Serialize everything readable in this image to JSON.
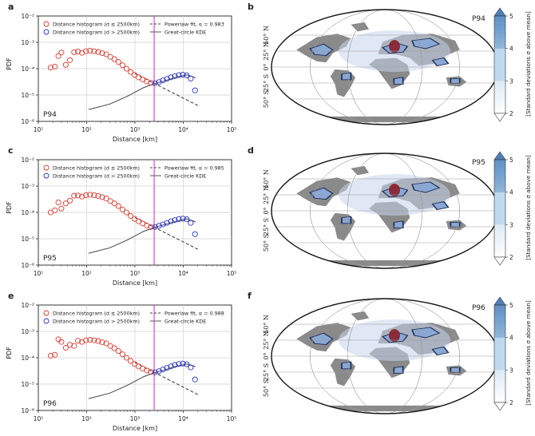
{
  "figure": {
    "rows": [
      {
        "left_letter": "a",
        "right_letter": "b",
        "panel_tag": "P94",
        "legend": {
          "small": "Distance histogram (d ≤ 2500km)",
          "large": "Distance histogram (d > 2500km)",
          "fit": "Powerlaw fit, α = 0.983",
          "kde": "Great-circle KDE"
        }
      },
      {
        "left_letter": "c",
        "right_letter": "d",
        "panel_tag": "P95",
        "legend": {
          "small": "Distance histogram (d ≤ 2500km)",
          "large": "Distance histogram (d > 2500km)",
          "fit": "Powerlaw fit, α = 0.985",
          "kde": "Great-circle KDE"
        }
      },
      {
        "left_letter": "e",
        "right_letter": "f",
        "panel_tag": "P96",
        "legend": {
          "small": "Distance histogram (d ≤ 2500km)",
          "large": "Distance histogram (d > 2500km)",
          "fit": "Powerlaw fit, α = 0.988",
          "kde": "Great-circle KDE"
        }
      }
    ],
    "axis_ylabel": "PDF",
    "axis_xlabel": "Distance [km]",
    "x_tick_labels": [
      "10¹",
      "10²",
      "10³",
      "10⁴",
      "10⁵"
    ],
    "y_tick_labels": [
      "10⁻⁶",
      "10⁻⁵",
      "10⁻⁴",
      "10⁻³",
      "10⁻²"
    ],
    "map_lat_labels": [
      "50° N",
      "25° N",
      "0°",
      "25° S",
      "50° S"
    ],
    "colorbar_label": "[Standard deviations σ above mean]",
    "colorbar_ticks": [
      "2",
      "3",
      "4",
      "5"
    ],
    "colors": {
      "small_marker": "#e03a2f",
      "large_marker": "#2b34c8",
      "cutoff_line": "#d23ad6",
      "fit_line": "#444444",
      "kde_line": "#555555",
      "land": "#8a8a8a",
      "hotspot": "#1d2f5a",
      "colorbar": [
        "#ffffff",
        "#bfd9ee",
        "#8fb6da",
        "#5f8fc4"
      ]
    }
  },
  "chart_data": [
    {
      "type": "scatter",
      "title": "P94",
      "xlabel": "Distance [km]",
      "ylabel": "PDF",
      "xscale": "log",
      "yscale": "log",
      "xlim": [
        10,
        100000
      ],
      "ylim": [
        1e-06,
        0.01
      ],
      "grid": true,
      "legend_position": "top",
      "cutoff_km": 2500,
      "series": [
        {
          "name": "Distance histogram (d ≤ 2500km)",
          "x": [
            18,
            22,
            26,
            30,
            37,
            45,
            55,
            66,
            80,
            97,
            118,
            143,
            173,
            210,
            255,
            309,
            375,
            455,
            552,
            669,
            812,
            985,
            1195,
            1450,
            1758,
            2133
          ],
          "y": [
            0.00011,
            0.00012,
            0.0003,
            0.00041,
            0.00014,
            0.00021,
            0.00042,
            0.00045,
            0.0004,
            0.00046,
            0.00048,
            0.00046,
            0.00043,
            0.00039,
            0.00035,
            0.00028,
            0.00023,
            0.00018,
            0.000135,
            0.0001,
            7.5e-05,
            5.8e-05,
            4.7e-05,
            3.9e-05,
            3.3e-05,
            2.9e-05
          ]
        },
        {
          "name": "Distance histogram (d > 2500km)",
          "x": [
            2600,
            3150,
            3800,
            4600,
            5550,
            6700,
            8100,
            9800,
            11800,
            14300,
            17500
          ],
          "y": [
            2.8e-05,
            3.1e-05,
            3.6e-05,
            4.1e-05,
            4.7e-05,
            5.2e-05,
            5.7e-05,
            5.9e-05,
            5.6e-05,
            4.2e-05,
            1.5e-05
          ]
        },
        {
          "name": "Powerlaw fit, α = 0.983",
          "x": [
            1000,
            20000
          ],
          "y": [
            6.5e-05,
            4e-06
          ]
        },
        {
          "name": "Great-circle KDE",
          "x": [
            110,
            300,
            700,
            1500,
            2500,
            4000,
            7000,
            12000,
            18000
          ],
          "y": [
            2.8e-06,
            4.5e-06,
            9e-06,
            1.9e-05,
            2.7e-05,
            3.4e-05,
            4.7e-05,
            5.8e-05,
            4.5e-05
          ]
        }
      ]
    },
    {
      "type": "scatter",
      "title": "P95",
      "xlabel": "Distance [km]",
      "ylabel": "PDF",
      "xscale": "log",
      "yscale": "log",
      "xlim": [
        10,
        100000
      ],
      "ylim": [
        1e-06,
        0.01
      ],
      "grid": true,
      "legend_position": "top",
      "cutoff_km": 2500,
      "series": [
        {
          "name": "Distance histogram (d ≤ 2500km)",
          "x": [
            18,
            22,
            26,
            30,
            37,
            45,
            55,
            66,
            80,
            97,
            118,
            143,
            173,
            210,
            255,
            309,
            375,
            455,
            552,
            669,
            812,
            985,
            1195,
            1450,
            1758,
            2133
          ],
          "y": [
            0.0001,
            0.00012,
            0.00024,
            0.00014,
            0.00022,
            0.00028,
            0.00043,
            0.00044,
            0.0004,
            0.00045,
            0.00047,
            0.00045,
            0.00042,
            0.00038,
            0.00034,
            0.00027,
            0.00022,
            0.000175,
            0.00013,
            0.0001,
            7.4e-05,
            5.7e-05,
            4.6e-05,
            3.8e-05,
            3.2e-05,
            2.8e-05
          ]
        },
        {
          "name": "Distance histogram (d > 2500km)",
          "x": [
            2600,
            3150,
            3800,
            4600,
            5550,
            6700,
            8100,
            9800,
            11800,
            14300,
            17500
          ],
          "y": [
            2.8e-05,
            3.1e-05,
            3.5e-05,
            4e-05,
            4.6e-05,
            5.1e-05,
            5.6e-05,
            5.8e-05,
            5.5e-05,
            4e-05,
            1.5e-05
          ]
        },
        {
          "name": "Powerlaw fit, α = 0.985",
          "x": [
            1000,
            20000
          ],
          "y": [
            6.4e-05,
            4e-06
          ]
        },
        {
          "name": "Great-circle KDE",
          "x": [
            110,
            300,
            700,
            1500,
            2500,
            4000,
            7000,
            12000,
            18000
          ],
          "y": [
            2.8e-06,
            4.5e-06,
            9e-06,
            1.9e-05,
            2.7e-05,
            3.4e-05,
            4.6e-05,
            5.7e-05,
            4.4e-05
          ]
        }
      ]
    },
    {
      "type": "scatter",
      "title": "P96",
      "xlabel": "Distance [km]",
      "ylabel": "PDF",
      "xscale": "log",
      "yscale": "log",
      "xlim": [
        10,
        100000
      ],
      "ylim": [
        1e-06,
        0.01
      ],
      "grid": true,
      "legend_position": "top",
      "cutoff_km": 2500,
      "series": [
        {
          "name": "Distance histogram (d ≤ 2500km)",
          "x": [
            18,
            22,
            26,
            30,
            37,
            45,
            55,
            66,
            80,
            97,
            118,
            143,
            173,
            210,
            255,
            309,
            375,
            455,
            552,
            669,
            812,
            985,
            1195,
            1450,
            1758,
            2133
          ],
          "y": [
            0.00012,
            0.00013,
            0.0005,
            0.0004,
            0.00024,
            0.00031,
            0.00028,
            0.00044,
            0.0004,
            0.00046,
            0.00048,
            0.00046,
            0.00043,
            0.00039,
            0.00035,
            0.00028,
            0.00023,
            0.00018,
            0.000135,
            0.0001,
            7.6e-05,
            5.8e-05,
            4.7e-05,
            3.9e-05,
            3.3e-05,
            2.9e-05
          ]
        },
        {
          "name": "Distance histogram (d > 2500km)",
          "x": [
            2600,
            3150,
            3800,
            4600,
            5550,
            6700,
            8100,
            9800,
            11800,
            14300,
            17500
          ],
          "y": [
            2.8e-05,
            3.1e-05,
            3.6e-05,
            4.1e-05,
            4.7e-05,
            5.3e-05,
            5.8e-05,
            6e-05,
            5.7e-05,
            4.3e-05,
            1.5e-05
          ]
        },
        {
          "name": "Powerlaw fit, α = 0.988",
          "x": [
            1000,
            20000
          ],
          "y": [
            6.6e-05,
            4e-06
          ]
        },
        {
          "name": "Great-circle KDE",
          "x": [
            110,
            300,
            700,
            1500,
            2500,
            4000,
            7000,
            12000,
            18000
          ],
          "y": [
            2.8e-06,
            4.5e-06,
            9e-06,
            1.9e-05,
            2.7e-05,
            3.4e-05,
            4.7e-05,
            5.8e-05,
            4.6e-05
          ]
        }
      ]
    }
  ]
}
